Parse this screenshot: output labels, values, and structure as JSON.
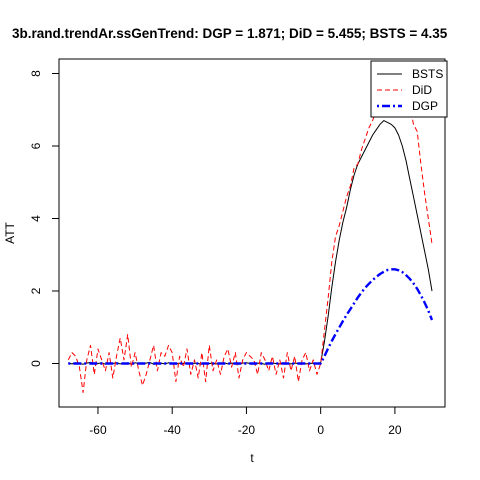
{
  "chart_data": {
    "type": "line",
    "title": "3b.rand.trendAr.ssGenTrend: DGP = 1.871; DiD = 5.455;  BSTS = 4.35",
    "xlabel": "t",
    "ylabel": "ATT",
    "xlim": [
      -70.5,
      33.5
    ],
    "ylim": [
      -1.2,
      8.4
    ],
    "x_ticks": [
      -60,
      -40,
      -20,
      0,
      20
    ],
    "x_tick_labels": [
      "-60",
      "-40",
      "-20",
      "0",
      "20"
    ],
    "y_ticks": [
      0,
      2,
      4,
      6,
      8
    ],
    "y_tick_labels": [
      "0",
      "2",
      "4",
      "6",
      "8"
    ],
    "legend_position": "top-right",
    "grid": false,
    "series": [
      {
        "name": "BSTS",
        "color": "#000000",
        "line_style": "solid",
        "x": [
          -68,
          -67,
          -66,
          -65,
          -64,
          -63,
          -62,
          -61,
          -60,
          -59,
          -58,
          -57,
          -56,
          -55,
          -54,
          -53,
          -52,
          -51,
          -50,
          -49,
          -48,
          -47,
          -46,
          -45,
          -44,
          -43,
          -42,
          -41,
          -40,
          -39,
          -38,
          -37,
          -36,
          -35,
          -34,
          -33,
          -32,
          -31,
          -30,
          -29,
          -28,
          -27,
          -26,
          -25,
          -24,
          -23,
          -22,
          -21,
          -20,
          -19,
          -18,
          -17,
          -16,
          -15,
          -14,
          -13,
          -12,
          -11,
          -10,
          -9,
          -8,
          -7,
          -6,
          -5,
          -4,
          -3,
          -2,
          -1,
          0,
          1,
          2,
          3,
          4,
          5,
          6,
          7,
          8,
          9,
          10,
          11,
          12,
          13,
          14,
          15,
          16,
          17,
          18,
          19,
          20,
          21,
          22,
          23,
          24,
          25,
          26,
          27,
          28,
          29,
          30
        ],
        "values": [
          0.01,
          -0.01,
          0.02,
          0.0,
          -0.02,
          0.01,
          0.03,
          -0.01,
          0.0,
          0.02,
          -0.02,
          0.01,
          0.0,
          0.02,
          -0.01,
          0.0,
          0.01,
          -0.02,
          0.02,
          0.0,
          -0.01,
          0.01,
          0.03,
          -0.02,
          0.0,
          0.01,
          -0.01,
          0.02,
          0.0,
          -0.02,
          0.01,
          0.0,
          0.02,
          -0.01,
          0.01,
          0.0,
          -0.02,
          0.02,
          0.0,
          0.01,
          -0.01,
          0.0,
          0.02,
          -0.01,
          0.01,
          0.0,
          -0.02,
          0.01,
          0.02,
          0.0,
          -0.01,
          0.01,
          0.0,
          -0.02,
          0.02,
          0.01,
          0.0,
          -0.01,
          0.02,
          0.0,
          -0.01,
          0.01,
          0.0,
          0.02,
          -0.01,
          0.0,
          0.01,
          -0.01,
          0.02,
          0.6,
          1.3,
          2.1,
          2.8,
          3.4,
          3.9,
          4.3,
          4.8,
          5.2,
          5.5,
          5.7,
          5.9,
          6.1,
          6.3,
          6.45,
          6.6,
          6.7,
          6.65,
          6.6,
          6.5,
          6.3,
          6.0,
          5.6,
          5.1,
          4.6,
          4.1,
          3.6,
          3.1,
          2.6,
          2.0
        ]
      },
      {
        "name": "DiD",
        "color": "#ff0000",
        "line_style": "dashed",
        "x": [
          -68,
          -67,
          -66,
          -65,
          -64,
          -63,
          -62,
          -61,
          -60,
          -59,
          -58,
          -57,
          -56,
          -55,
          -54,
          -53,
          -52,
          -51,
          -50,
          -49,
          -48,
          -47,
          -46,
          -45,
          -44,
          -43,
          -42,
          -41,
          -40,
          -39,
          -38,
          -37,
          -36,
          -35,
          -34,
          -33,
          -32,
          -31,
          -30,
          -29,
          -28,
          -27,
          -26,
          -25,
          -24,
          -23,
          -22,
          -21,
          -20,
          -19,
          -18,
          -17,
          -16,
          -15,
          -14,
          -13,
          -12,
          -11,
          -10,
          -9,
          -8,
          -7,
          -6,
          -5,
          -4,
          -3,
          -2,
          -1,
          0,
          1,
          2,
          3,
          4,
          5,
          6,
          7,
          8,
          9,
          10,
          11,
          12,
          13,
          14,
          15,
          16,
          17,
          18,
          19,
          20,
          21,
          22,
          23,
          24,
          25,
          26,
          27,
          28,
          29,
          30
        ],
        "values": [
          0.1,
          0.3,
          0.2,
          -0.1,
          -0.8,
          0.1,
          0.5,
          -0.3,
          0.4,
          0.1,
          -0.2,
          0.3,
          -0.4,
          0.2,
          0.7,
          0.1,
          0.8,
          -0.1,
          0.3,
          -0.2,
          -0.6,
          -0.3,
          0.1,
          0.5,
          -0.2,
          0.3,
          0.2,
          0.5,
          0.3,
          -0.5,
          0.2,
          -0.1,
          0.4,
          -0.3,
          0.1,
          -0.4,
          0.3,
          -0.5,
          0.5,
          -0.2,
          0.1,
          -0.3,
          0.2,
          0.4,
          -0.1,
          0.3,
          -0.4,
          0.1,
          0.3,
          0.2,
          0.1,
          -0.3,
          0.3,
          0.1,
          -0.2,
          0.2,
          -0.3,
          0.1,
          -0.4,
          0.3,
          -0.2,
          0.2,
          -0.5,
          0.1,
          0.3,
          -0.2,
          0.1,
          -0.3,
          0.0,
          0.9,
          1.8,
          2.8,
          3.5,
          3.8,
          4.2,
          4.6,
          4.9,
          5.4,
          5.5,
          5.9,
          6.2,
          6.5,
          6.7,
          7.0,
          7.1,
          7.2,
          7.4,
          7.5,
          7.6,
          7.5,
          7.5,
          7.3,
          7.1,
          6.6,
          6.4,
          5.5,
          4.7,
          4.0,
          3.3
        ]
      },
      {
        "name": "DGP",
        "color": "#0000ff",
        "line_style": "dotdash",
        "x": [
          -68,
          -67,
          -66,
          -65,
          -64,
          -63,
          -62,
          -61,
          -60,
          -59,
          -58,
          -57,
          -56,
          -55,
          -54,
          -53,
          -52,
          -51,
          -50,
          -49,
          -48,
          -47,
          -46,
          -45,
          -44,
          -43,
          -42,
          -41,
          -40,
          -39,
          -38,
          -37,
          -36,
          -35,
          -34,
          -33,
          -32,
          -31,
          -30,
          -29,
          -28,
          -27,
          -26,
          -25,
          -24,
          -23,
          -22,
          -21,
          -20,
          -19,
          -18,
          -17,
          -16,
          -15,
          -14,
          -13,
          -12,
          -11,
          -10,
          -9,
          -8,
          -7,
          -6,
          -5,
          -4,
          -3,
          -2,
          -1,
          0,
          1,
          2,
          3,
          4,
          5,
          6,
          7,
          8,
          9,
          10,
          11,
          12,
          13,
          14,
          15,
          16,
          17,
          18,
          19,
          20,
          21,
          22,
          23,
          24,
          25,
          26,
          27,
          28,
          29,
          30
        ],
        "values": [
          0,
          0,
          0,
          0,
          0,
          0,
          0,
          0,
          0,
          0,
          0,
          0,
          0,
          0,
          0,
          0,
          0,
          0,
          0,
          0,
          0,
          0,
          0,
          0,
          0,
          0,
          0,
          0,
          0,
          0,
          0,
          0,
          0,
          0,
          0,
          0,
          0,
          0,
          0,
          0,
          0,
          0,
          0,
          0,
          0,
          0,
          0,
          0,
          0,
          0,
          0,
          0,
          0,
          0,
          0,
          0,
          0,
          0,
          0,
          0,
          0,
          0,
          0,
          0,
          0,
          0,
          0,
          0,
          0,
          0.2,
          0.42,
          0.62,
          0.81,
          0.99,
          1.17,
          1.34,
          1.5,
          1.66,
          1.82,
          1.96,
          2.09,
          2.2,
          2.3,
          2.39,
          2.47,
          2.53,
          2.58,
          2.6,
          2.6,
          2.57,
          2.52,
          2.44,
          2.34,
          2.21,
          2.06,
          1.88,
          1.68,
          1.46,
          1.2
        ]
      }
    ]
  }
}
